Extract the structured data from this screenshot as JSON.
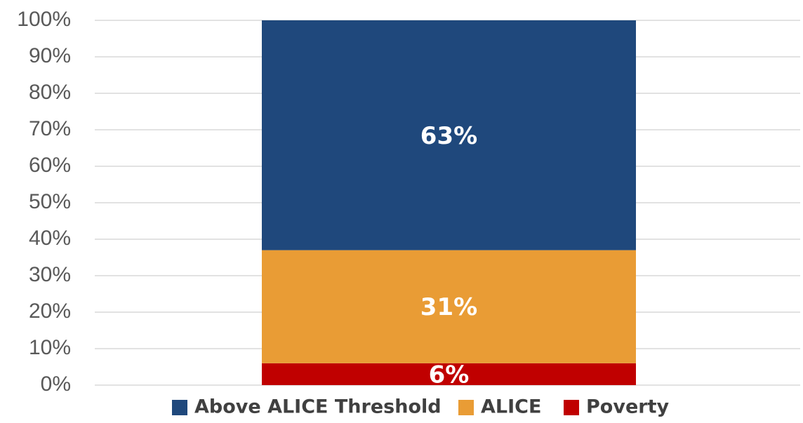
{
  "chart_data": {
    "type": "bar",
    "stacked": true,
    "categories": [
      ""
    ],
    "series": [
      {
        "name": "Poverty",
        "values": [
          6
        ],
        "label": "6%",
        "color": "#C00000"
      },
      {
        "name": "ALICE",
        "values": [
          31
        ],
        "label": "31%",
        "color": "#E99C35"
      },
      {
        "name": "Above ALICE Threshold",
        "values": [
          63
        ],
        "label": "63%",
        "color": "#1F487C"
      }
    ],
    "ylim": [
      0,
      100
    ],
    "yticks": [
      "0%",
      "10%",
      "20%",
      "30%",
      "40%",
      "50%",
      "60%",
      "70%",
      "80%",
      "90%",
      "100%"
    ],
    "grid": true,
    "legend": {
      "position": "bottom",
      "order": [
        "Above ALICE Threshold",
        "ALICE",
        "Poverty"
      ]
    },
    "title": "",
    "xlabel": "",
    "ylabel": ""
  }
}
